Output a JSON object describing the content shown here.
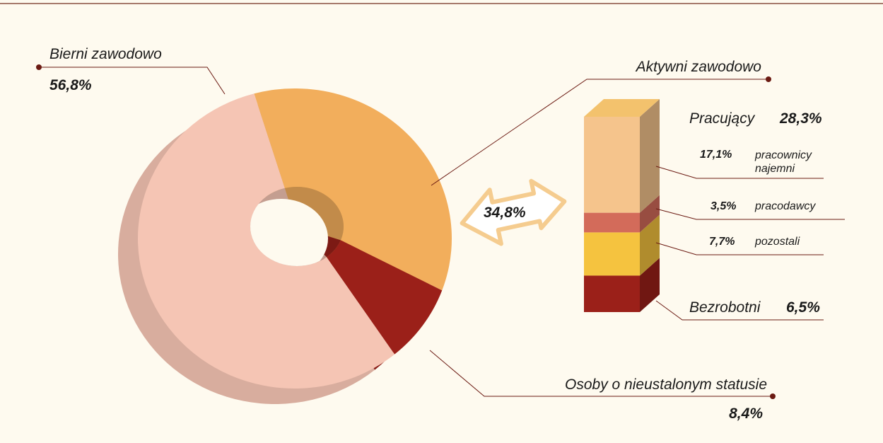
{
  "chart_data": [
    {
      "type": "pie",
      "donut": true,
      "categories": [
        "Bierni zawodowo",
        "Aktywni zawodowo",
        "Osoby o nieustalonym statusie"
      ],
      "values": [
        56.8,
        34.8,
        8.4
      ],
      "value_labels": [
        "56,8%",
        "34,8%",
        "8,4%"
      ],
      "colors": [
        "#f5c5b4",
        "#f2ae5c",
        "#9b2019"
      ]
    },
    {
      "type": "bar",
      "stacked": true,
      "series": [
        {
          "name": "Bezrobotni",
          "color": "#9b2019",
          "values": [
            6.5
          ],
          "value_labels": [
            "6,5%"
          ]
        },
        {
          "name": "pozostali",
          "color": "#f5c33f",
          "values": [
            7.7
          ],
          "value_labels": [
            "7,7%"
          ]
        },
        {
          "name": "pracodawcy",
          "color": "#d36b5a",
          "values": [
            3.5
          ],
          "value_labels": [
            "3,5%"
          ]
        },
        {
          "name": "pracownicy najemni",
          "color": "#f5c48c",
          "values": [
            17.1
          ],
          "value_labels": [
            "17,1%"
          ]
        }
      ],
      "groups": [
        {
          "name": "Pracujący",
          "value": 28.3,
          "value_label": "28,3%"
        }
      ]
    }
  ]
}
